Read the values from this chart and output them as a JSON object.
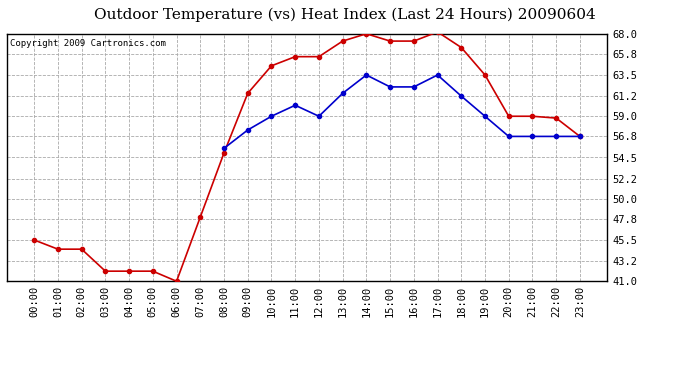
{
  "title": "Outdoor Temperature (vs) Heat Index (Last 24 Hours) 20090604",
  "copyright": "Copyright 2009 Cartronics.com",
  "x_labels": [
    "00:00",
    "01:00",
    "02:00",
    "03:00",
    "04:00",
    "05:00",
    "06:00",
    "07:00",
    "08:00",
    "09:00",
    "10:00",
    "11:00",
    "12:00",
    "13:00",
    "14:00",
    "15:00",
    "16:00",
    "17:00",
    "18:00",
    "19:00",
    "20:00",
    "21:00",
    "22:00",
    "23:00"
  ],
  "temp_red": [
    45.5,
    44.5,
    44.5,
    42.1,
    42.1,
    42.1,
    41.0,
    48.0,
    55.0,
    61.5,
    64.5,
    65.5,
    65.5,
    67.2,
    68.0,
    67.2,
    67.2,
    68.2,
    66.5,
    63.5,
    59.0,
    59.0,
    58.8,
    56.8
  ],
  "heat_blue": [
    null,
    null,
    null,
    null,
    null,
    null,
    null,
    null,
    55.5,
    57.5,
    59.0,
    60.2,
    59.0,
    61.5,
    63.5,
    62.2,
    62.2,
    63.5,
    61.2,
    59.0,
    56.8,
    56.8,
    56.8,
    56.8
  ],
  "ylim_min": 41.0,
  "ylim_max": 68.0,
  "yticks": [
    41.0,
    43.2,
    45.5,
    47.8,
    50.0,
    52.2,
    54.5,
    56.8,
    59.0,
    61.2,
    63.5,
    65.8,
    68.0
  ],
  "bg_color": "#ffffff",
  "plot_bg_color": "#ffffff",
  "red_color": "#cc0000",
  "blue_color": "#0000cc",
  "grid_color": "#aaaaaa",
  "title_fontsize": 11,
  "copyright_fontsize": 6.5,
  "tick_fontsize": 7.5
}
